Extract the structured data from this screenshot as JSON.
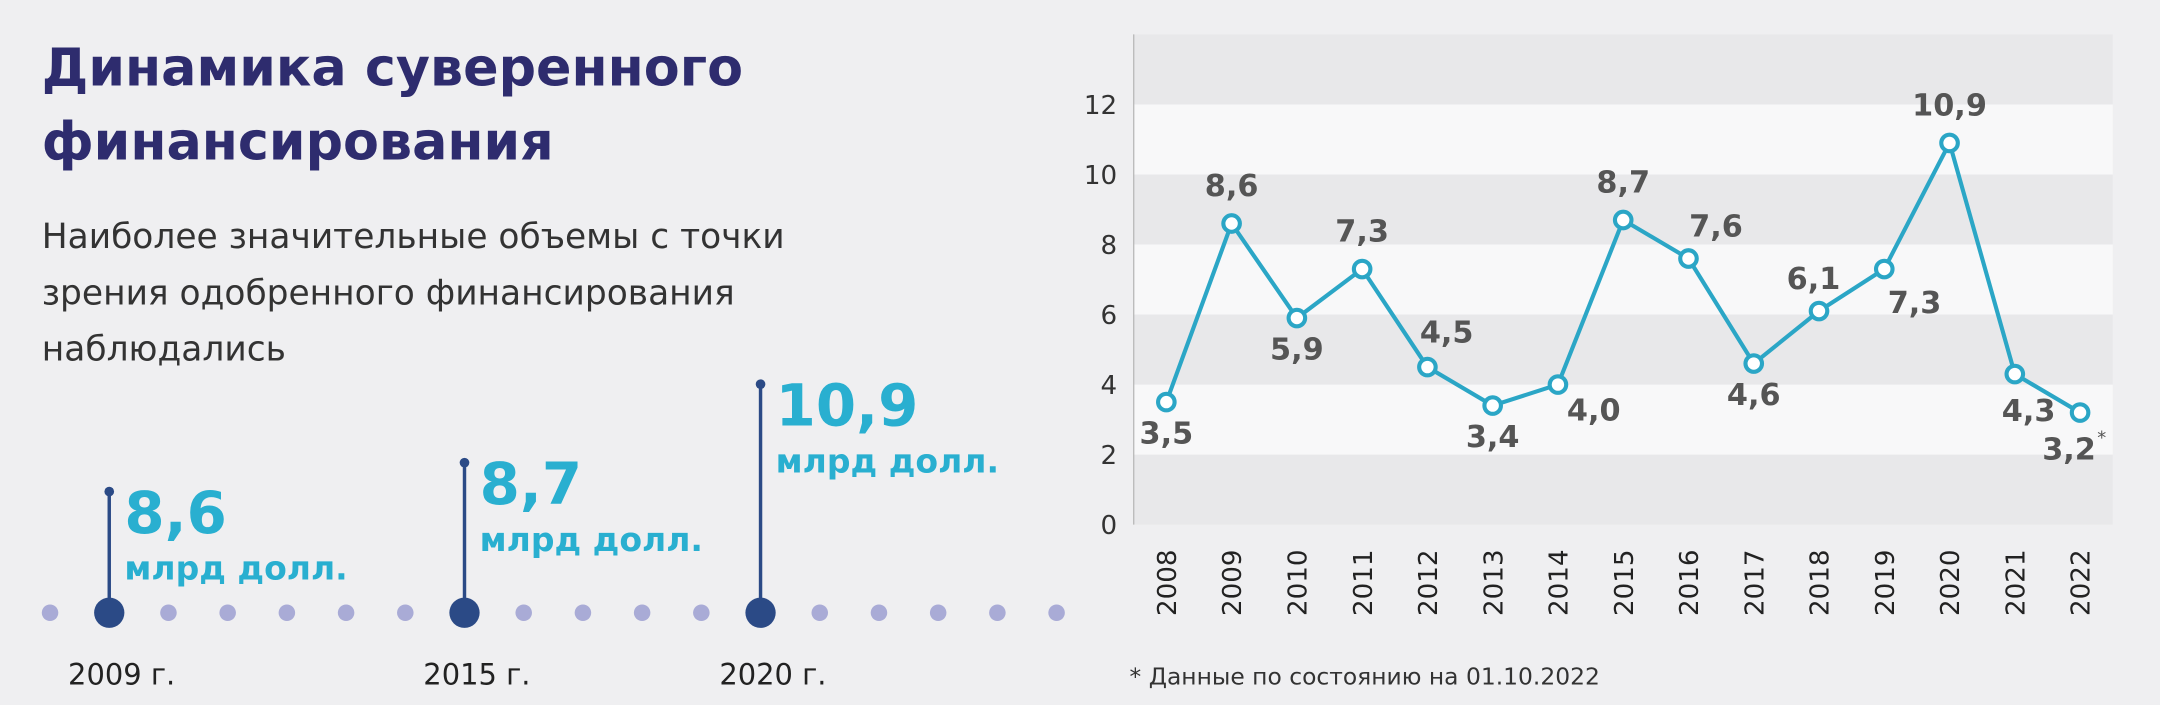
{
  "left": {
    "title": [
      "Динамика суверенного",
      "финансирования"
    ],
    "subtitle": [
      "Наиболее значительные объемы с точки",
      "зрения одобренного финансирования",
      "наблюдались"
    ],
    "highlights": [
      {
        "value": "8,6",
        "unit": "млрд долл.",
        "year": "2009 г."
      },
      {
        "value": "8,7",
        "unit": "млрд долл.",
        "year": "2015 г."
      },
      {
        "value": "10,9",
        "unit": "млрд долл.",
        "year": "2020 г."
      }
    ]
  },
  "chart_data": {
    "type": "line",
    "categories": [
      "2008",
      "2009",
      "2010",
      "2011",
      "2012",
      "2013",
      "2014",
      "2015",
      "2016",
      "2017",
      "2018",
      "2019",
      "2020",
      "2021",
      "2022"
    ],
    "values": [
      3.5,
      8.6,
      5.9,
      7.3,
      4.5,
      3.4,
      4.0,
      8.7,
      7.6,
      4.6,
      6.1,
      7.3,
      10.9,
      4.3,
      3.2
    ],
    "value_labels": [
      "3,5",
      "8,6",
      "5,9",
      "7,3",
      "4,5",
      "3,4",
      "4,0",
      "8,7",
      "7,6",
      "4,6",
      "6,1",
      "7,3",
      "10,9",
      "4,3",
      "3,2"
    ],
    "color": "#2ba6c6",
    "ylim": [
      0,
      14
    ],
    "yticks": [
      0,
      2,
      4,
      6,
      8,
      10,
      12
    ],
    "grid": "bands",
    "footnote_marker": "*",
    "footnote": "* Данные по состоянию на 01.10.2022"
  }
}
